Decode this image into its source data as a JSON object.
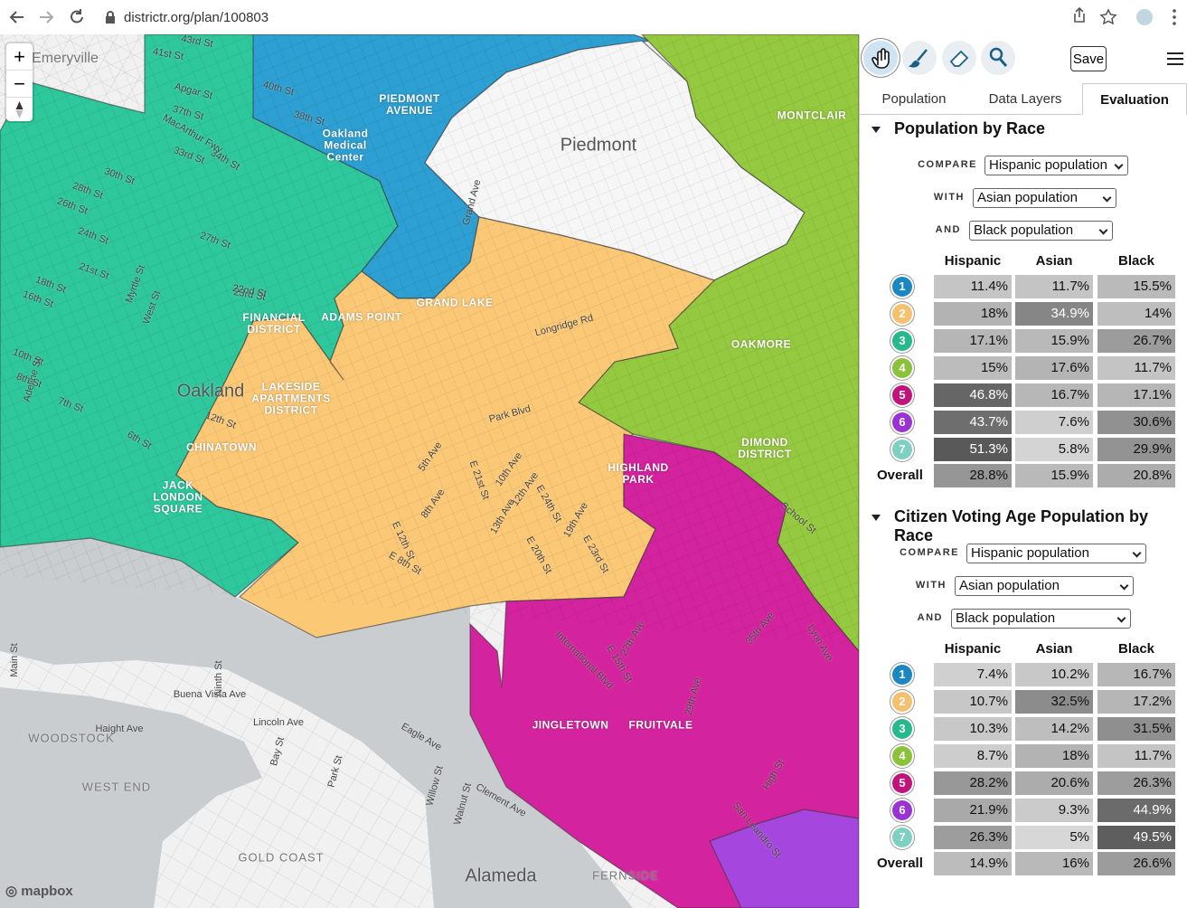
{
  "browser": {
    "url": "districtr.org/plan/100803"
  },
  "map": {
    "labels": [
      "Emeryville",
      "Piedmont",
      "Oakland",
      "PIEDMONT AVENUE",
      "Oakland Medical Center",
      "GRAND LAKE",
      "ADAMS POINT",
      "FINANCIAL DISTRICT",
      "LAKESIDE APARTMENTS DISTRICT",
      "CHINATOWN",
      "JACK LONDON SQUARE",
      "HIGHLAND PARK",
      "DIMOND DISTRICT",
      "OAKMORE",
      "MONTCLAIR",
      "JINGLETOWN",
      "FRUITVALE",
      "WOODSTOCK",
      "WEST END",
      "GOLD COAST",
      "Alameda",
      "FERNSIDE",
      "40th St",
      "Apgar St",
      "37th St",
      "MacArthur Fwy",
      "38th St",
      "34th St",
      "33rd St",
      "30th St",
      "28th St",
      "26th St",
      "24th St",
      "27th St",
      "Myrtle St",
      "21st St",
      "18th St",
      "16th St",
      "23rd St",
      "West St",
      "10th St",
      "Adeline St",
      "8th St",
      "7th St",
      "12th St",
      "6th St",
      "Grand Ave",
      "Longridge Rd",
      "Park Blvd",
      "5th Ave",
      "E 21st St",
      "10th Ave",
      "12th Ave",
      "E 24th St",
      "8th Ave",
      "13th Ave",
      "19th Ave",
      "E 12th St",
      "E 8th St",
      "E 20th St",
      "E 23rd St",
      "School St",
      "International Blvd",
      "E 15th St",
      "27th Ave",
      "35th Ave",
      "Lyon Ave",
      "29th Ave",
      "High St",
      "San Leandro St",
      "Buena Vista Ave",
      "Haight Ave",
      "Lincoln Ave",
      "Ninth St",
      "Bay St",
      "Eagle Ave",
      "Clement Ave",
      "Park St",
      "Willow St",
      "Walnut St",
      "Main St",
      "43rd St",
      "41st St",
      "22nd St"
    ],
    "attribution": "mapbox",
    "zoom_in": "+",
    "zoom_out": "−"
  },
  "toolbar": {
    "save": "Save"
  },
  "tabs": [
    "Population",
    "Data Layers",
    "Evaluation"
  ],
  "sections": [
    {
      "title": "Population by Race",
      "compare_label": "COMPARE",
      "compare": "Hispanic population",
      "with_label": "WITH",
      "with": "Asian population",
      "and_label": "AND",
      "and": "Black population",
      "columns": [
        "Hispanic",
        "Asian",
        "Black"
      ],
      "rows": [
        {
          "label": "1",
          "color": "#1a86c2",
          "values": [
            "11.4%",
            "11.7%",
            "15.5%"
          ]
        },
        {
          "label": "2",
          "color": "#f6c16f",
          "values": [
            "18%",
            "34.9%",
            "14%"
          ]
        },
        {
          "label": "3",
          "color": "#26b98c",
          "values": [
            "17.1%",
            "15.9%",
            "26.7%"
          ]
        },
        {
          "label": "4",
          "color": "#8cc23a",
          "values": [
            "15%",
            "17.6%",
            "11.7%"
          ]
        },
        {
          "label": "5",
          "color": "#c2137d",
          "values": [
            "46.8%",
            "16.7%",
            "17.1%"
          ]
        },
        {
          "label": "6",
          "color": "#9a33d6",
          "values": [
            "43.7%",
            "7.6%",
            "30.6%"
          ]
        },
        {
          "label": "7",
          "color": "#7dd0c2",
          "values": [
            "51.3%",
            "5.8%",
            "29.9%"
          ]
        },
        {
          "label": "Overall",
          "values": [
            "28.8%",
            "15.9%",
            "20.8%"
          ]
        }
      ]
    },
    {
      "title": "Citizen Voting Age Population by Race",
      "compare_label": "COMPARE",
      "compare": "Hispanic population",
      "with_label": "WITH",
      "with": "Asian population",
      "and_label": "AND",
      "and": "Black population",
      "columns": [
        "Hispanic",
        "Asian",
        "Black"
      ],
      "rows": [
        {
          "label": "1",
          "color": "#1a86c2",
          "values": [
            "7.4%",
            "10.2%",
            "16.7%"
          ]
        },
        {
          "label": "2",
          "color": "#f6c16f",
          "values": [
            "10.7%",
            "32.5%",
            "17.2%"
          ]
        },
        {
          "label": "3",
          "color": "#26b98c",
          "values": [
            "10.3%",
            "14.2%",
            "31.5%"
          ]
        },
        {
          "label": "4",
          "color": "#8cc23a",
          "values": [
            "8.7%",
            "18%",
            "11.7%"
          ]
        },
        {
          "label": "5",
          "color": "#c2137d",
          "values": [
            "28.2%",
            "20.6%",
            "26.3%"
          ]
        },
        {
          "label": "6",
          "color": "#9a33d6",
          "values": [
            "21.9%",
            "9.3%",
            "44.9%"
          ]
        },
        {
          "label": "7",
          "color": "#7dd0c2",
          "values": [
            "26.3%",
            "5%",
            "49.5%"
          ]
        },
        {
          "label": "Overall",
          "values": [
            "14.9%",
            "16%",
            "26.6%"
          ]
        }
      ]
    }
  ]
}
